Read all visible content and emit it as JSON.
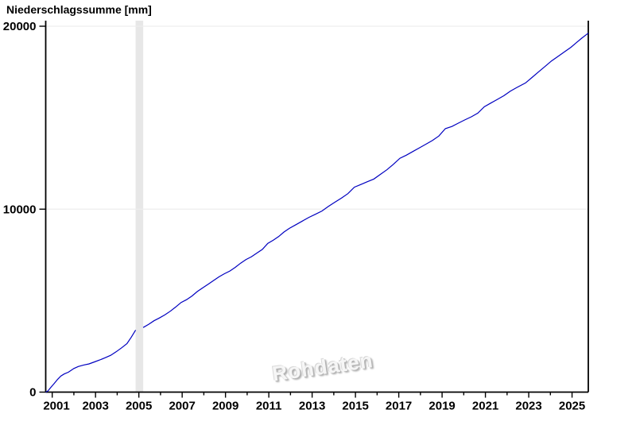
{
  "chart_data": {
    "type": "line",
    "title": "Niederschlagssumme [mm]",
    "xlabel": "",
    "ylabel": "Niederschlagssumme [mm]",
    "watermark": "Rohdaten",
    "legend": null,
    "grid": "horizontal-only",
    "x_range": [
      2000.7,
      2025.75
    ],
    "y_range": [
      0,
      20000
    ],
    "x_ticks": [
      2001,
      2002,
      2003,
      2004,
      2005,
      2006,
      2007,
      2008,
      2009,
      2010,
      2011,
      2012,
      2013,
      2014,
      2015,
      2016,
      2017,
      2018,
      2019,
      2020,
      2021,
      2022,
      2023,
      2024,
      2025
    ],
    "x_tick_labels": [
      2001,
      2003,
      2005,
      2007,
      2009,
      2011,
      2013,
      2015,
      2017,
      2019,
      2021,
      2023,
      2025
    ],
    "y_ticks": [
      0,
      10000,
      20000
    ],
    "y_gridlines": [
      10000,
      20000
    ],
    "line_color": "#0000c0",
    "axis_color": "#000000",
    "gridline_color": "#ededed",
    "gap_band": {
      "from": 2004.85,
      "to": 2005.2,
      "color": "#e7e7e7"
    },
    "series": [
      {
        "name": "Niederschlagssumme",
        "segments": [
          [
            [
              2000.7,
              0
            ],
            [
              2000.8,
              60
            ],
            [
              2000.95,
              280
            ],
            [
              2001.1,
              480
            ],
            [
              2001.25,
              700
            ],
            [
              2001.4,
              880
            ],
            [
              2001.55,
              990
            ],
            [
              2001.75,
              1090
            ],
            [
              2002.0,
              1290
            ],
            [
              2002.2,
              1400
            ],
            [
              2002.45,
              1480
            ],
            [
              2002.7,
              1540
            ],
            [
              2002.95,
              1650
            ],
            [
              2003.2,
              1760
            ],
            [
              2003.45,
              1880
            ],
            [
              2003.7,
              2010
            ],
            [
              2003.95,
              2200
            ],
            [
              2004.2,
              2420
            ],
            [
              2004.45,
              2650
            ],
            [
              2004.65,
              3000
            ],
            [
              2004.85,
              3390
            ]
          ],
          [
            [
              2005.2,
              3530
            ],
            [
              2005.45,
              3700
            ],
            [
              2005.7,
              3900
            ],
            [
              2005.95,
              4050
            ],
            [
              2006.2,
              4220
            ],
            [
              2006.45,
              4420
            ],
            [
              2006.7,
              4650
            ],
            [
              2006.95,
              4900
            ],
            [
              2007.2,
              5050
            ],
            [
              2007.45,
              5250
            ],
            [
              2007.7,
              5500
            ],
            [
              2007.95,
              5700
            ],
            [
              2008.2,
              5900
            ],
            [
              2008.45,
              6100
            ],
            [
              2008.7,
              6300
            ],
            [
              2008.95,
              6470
            ],
            [
              2009.2,
              6620
            ],
            [
              2009.45,
              6820
            ],
            [
              2009.7,
              7050
            ],
            [
              2009.95,
              7250
            ],
            [
              2010.2,
              7400
            ],
            [
              2010.45,
              7600
            ],
            [
              2010.7,
              7800
            ],
            [
              2010.95,
              8130
            ],
            [
              2011.2,
              8300
            ],
            [
              2011.45,
              8500
            ],
            [
              2011.7,
              8750
            ],
            [
              2011.95,
              8950
            ],
            [
              2012.25,
              9150
            ],
            [
              2012.55,
              9350
            ],
            [
              2012.85,
              9550
            ],
            [
              2013.15,
              9720
            ],
            [
              2013.45,
              9900
            ],
            [
              2013.75,
              10150
            ],
            [
              2014.05,
              10380
            ],
            [
              2014.35,
              10600
            ],
            [
              2014.65,
              10850
            ],
            [
              2014.95,
              11200
            ],
            [
              2015.25,
              11350
            ],
            [
              2015.55,
              11500
            ],
            [
              2015.85,
              11650
            ],
            [
              2016.15,
              11900
            ],
            [
              2016.45,
              12150
            ],
            [
              2016.75,
              12450
            ],
            [
              2017.05,
              12780
            ],
            [
              2017.35,
              12950
            ],
            [
              2017.65,
              13150
            ],
            [
              2017.95,
              13350
            ],
            [
              2018.25,
              13550
            ],
            [
              2018.55,
              13750
            ],
            [
              2018.85,
              14000
            ],
            [
              2019.15,
              14400
            ],
            [
              2019.45,
              14520
            ],
            [
              2019.75,
              14700
            ],
            [
              2020.05,
              14880
            ],
            [
              2020.35,
              15050
            ],
            [
              2020.65,
              15250
            ],
            [
              2020.95,
              15600
            ],
            [
              2021.25,
              15800
            ],
            [
              2021.55,
              16000
            ],
            [
              2021.85,
              16200
            ],
            [
              2022.15,
              16450
            ],
            [
              2022.45,
              16650
            ],
            [
              2022.85,
              16900
            ],
            [
              2023.15,
              17200
            ],
            [
              2023.45,
              17500
            ],
            [
              2023.75,
              17800
            ],
            [
              2024.05,
              18100
            ],
            [
              2024.35,
              18350
            ],
            [
              2024.65,
              18600
            ],
            [
              2024.95,
              18850
            ],
            [
              2025.2,
              19100
            ],
            [
              2025.45,
              19350
            ],
            [
              2025.75,
              19620
            ]
          ]
        ]
      }
    ]
  }
}
